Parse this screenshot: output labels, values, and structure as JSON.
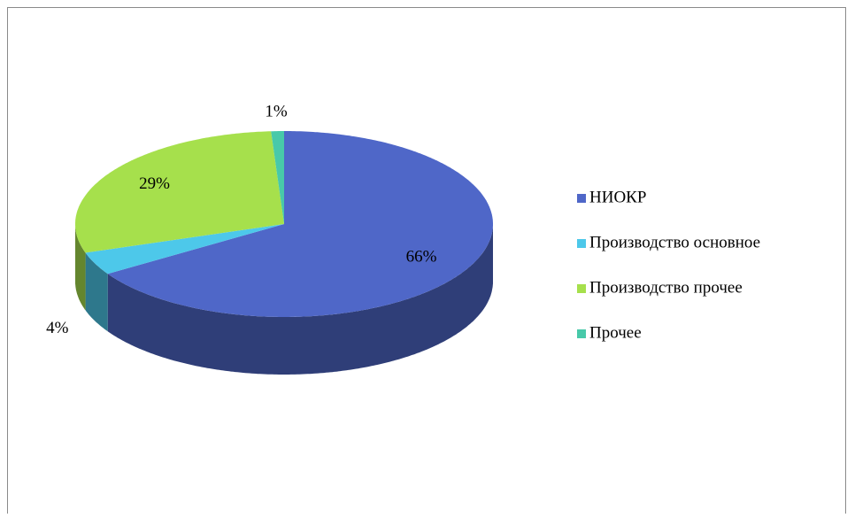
{
  "chart_data": {
    "type": "pie",
    "categories": [
      "НИОКР",
      "Производство основное",
      "Производство прочее",
      "Прочее"
    ],
    "values": [
      66,
      4,
      29,
      1
    ],
    "value_labels": [
      "66%",
      "4%",
      "29%",
      "1%"
    ],
    "colors": [
      "#4f67c8",
      "#4dc8ea",
      "#a6e04c",
      "#48c9a9"
    ],
    "legend": "right"
  }
}
